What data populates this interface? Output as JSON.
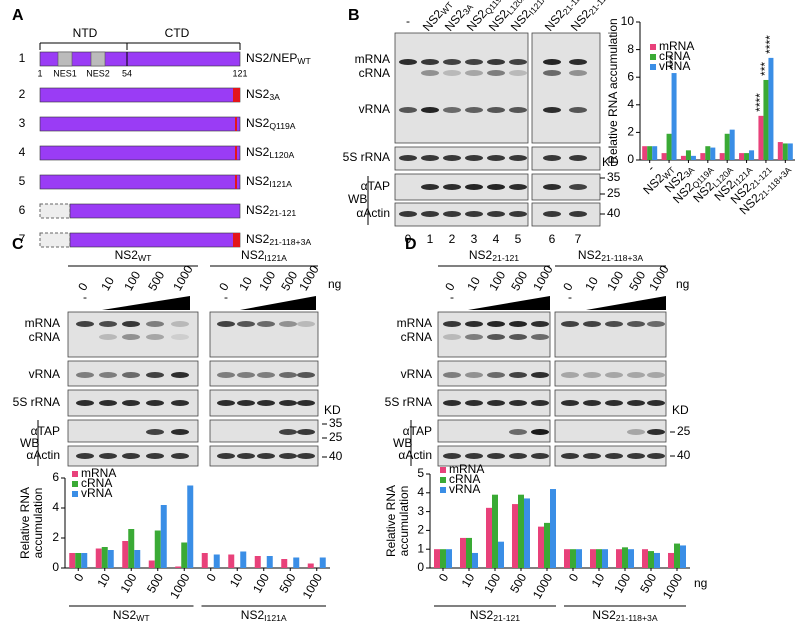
{
  "panel_labels": [
    "A",
    "B",
    "C",
    "D"
  ],
  "domain_map": {
    "regions": [
      "NTD",
      "CTD"
    ],
    "motifs": [
      "NES1",
      "NES2"
    ],
    "positions": [
      "1",
      "54",
      "121"
    ],
    "constructs": [
      {
        "number": "1",
        "name": {
          "text": "NS2/NEP",
          "sub": "WT"
        }
      },
      {
        "number": "2",
        "name": {
          "text": "NS2",
          "sub": "3A"
        }
      },
      {
        "number": "3",
        "name": {
          "text": "NS2",
          "sub": "Q119A"
        }
      },
      {
        "number": "4",
        "name": {
          "text": "NS2",
          "sub": "L120A"
        }
      },
      {
        "number": "5",
        "name": {
          "text": "NS2",
          "sub": "I121A"
        }
      },
      {
        "number": "6",
        "name": {
          "text": "NS2",
          "sub": "21-121"
        }
      },
      {
        "number": "7",
        "name": {
          "text": "NS2",
          "sub": "21-118+3A"
        }
      }
    ]
  },
  "blot_labels": {
    "rows": [
      "mRNA",
      "cRNA",
      "vRNA",
      "5S rRNA"
    ],
    "wb": "WB",
    "proteins": [
      "αTAP",
      "αActin"
    ],
    "kd": "KD",
    "dose_minus": "-",
    "dose_unit": "ng"
  },
  "lane_numbers": [
    "0",
    "1",
    "2",
    "3",
    "4",
    "5",
    "6",
    "7"
  ],
  "kd_marks": {
    "b": [
      "35",
      "25",
      "40"
    ],
    "c": [
      "35",
      "25",
      "40"
    ],
    "d": [
      "25",
      "40"
    ]
  },
  "chart_data": [
    {
      "type": "bar",
      "y_label": "Relative RNA accumulation",
      "categories": [
        "-",
        {
          "text": "NS2",
          "sub": "WT"
        },
        {
          "text": "NS2",
          "sub": "3A"
        },
        {
          "text": "NS2",
          "sub": "Q119A"
        },
        {
          "text": "NS2",
          "sub": "L120A"
        },
        {
          "text": "NS2",
          "sub": "I121A"
        },
        {
          "text": "NS2",
          "sub": "21-121"
        },
        {
          "text": "NS2",
          "sub": "21-118+3A"
        }
      ],
      "series": [
        {
          "name": "mRNA",
          "color": "#e8417a",
          "values": [
            1,
            0.5,
            0.3,
            0.5,
            0.5,
            0.5,
            3.2,
            1.3
          ]
        },
        {
          "name": "cRNA",
          "color": "#3aaa35",
          "values": [
            1,
            1.9,
            0.7,
            1.0,
            1.9,
            0.5,
            5.8,
            1.2
          ]
        },
        {
          "name": "vRNA",
          "color": "#3a8ee6",
          "values": [
            1,
            6.3,
            0.3,
            0.9,
            2.2,
            0.7,
            7.4,
            1.2
          ]
        }
      ],
      "annotations": [
        "***",
        "****",
        "***",
        "****"
      ],
      "ylim": [
        0,
        10
      ],
      "yticks": [
        0,
        2,
        4,
        6,
        8,
        10
      ]
    },
    {
      "type": "bar",
      "y_label": [
        "Relative RNA",
        "accumulation"
      ],
      "categories": [
        "0",
        "10",
        "100",
        "500",
        "1000",
        "0",
        "10",
        "100",
        "500",
        "1000"
      ],
      "groups": [
        {
          "text": "NS2",
          "sub": "WT"
        },
        {
          "text": "NS2",
          "sub": "I121A"
        }
      ],
      "series": [
        {
          "name": "mRNA",
          "color": "#e8417a",
          "values": [
            1,
            1.3,
            1.8,
            0.5,
            0.1,
            1,
            0.9,
            0.8,
            0.6,
            0.3
          ]
        },
        {
          "name": "cRNA",
          "color": "#3aaa35",
          "values": [
            1,
            1.4,
            2.6,
            2.5,
            1.7,
            null,
            null,
            null,
            null,
            null
          ]
        },
        {
          "name": "vRNA",
          "color": "#3a8ee6",
          "values": [
            1,
            1.2,
            1.2,
            4.2,
            5.5,
            0.9,
            1.1,
            0.8,
            0.7,
            0.7
          ]
        }
      ],
      "ylim": [
        0,
        6
      ],
      "yticks": [
        0,
        2,
        4,
        6
      ]
    },
    {
      "type": "bar",
      "y_label": [
        "Relative RNA",
        "accumulation"
      ],
      "categories": [
        "0",
        "10",
        "100",
        "500",
        "1000",
        "0",
        "10",
        "100",
        "500",
        "1000"
      ],
      "groups": [
        {
          "text": "NS2",
          "sub": "21-121"
        },
        {
          "text": "NS2",
          "sub": "21-118+3A"
        }
      ],
      "x_unit": "ng",
      "series": [
        {
          "name": "mRNA",
          "color": "#e8417a",
          "values": [
            1,
            1.6,
            3.2,
            3.4,
            2.2,
            1,
            1,
            1,
            1,
            0.8
          ]
        },
        {
          "name": "cRNA",
          "color": "#3aaa35",
          "values": [
            1,
            1.6,
            3.9,
            3.9,
            2.4,
            1,
            1,
            1.1,
            0.9,
            1.3
          ]
        },
        {
          "name": "vRNA",
          "color": "#3a8ee6",
          "values": [
            1,
            0.8,
            1.4,
            3.7,
            4.2,
            1,
            1,
            1,
            0.8,
            1.2
          ]
        }
      ],
      "ylim": [
        0,
        5
      ],
      "yticks": [
        0,
        1,
        2,
        3,
        4,
        5
      ]
    }
  ]
}
